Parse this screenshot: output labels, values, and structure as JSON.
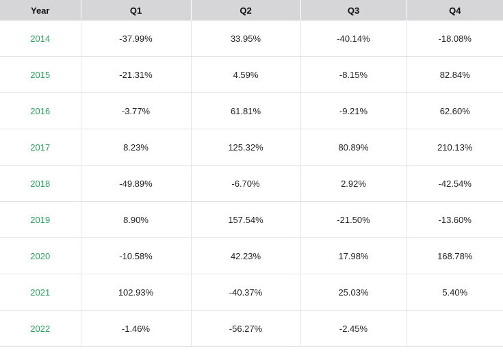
{
  "table": {
    "headers": [
      "Year",
      "Q1",
      "Q2",
      "Q3",
      "Q4"
    ],
    "rows": [
      {
        "year": "2014",
        "q1": "-37.99%",
        "q2": "33.95%",
        "q3": "-40.14%",
        "q4": "-18.08%"
      },
      {
        "year": "2015",
        "q1": "-21.31%",
        "q2": "4.59%",
        "q3": "-8.15%",
        "q4": "82.84%"
      },
      {
        "year": "2016",
        "q1": "-3.77%",
        "q2": "61.81%",
        "q3": "-9.21%",
        "q4": "62.60%"
      },
      {
        "year": "2017",
        "q1": "8.23%",
        "q2": "125.32%",
        "q3": "80.89%",
        "q4": "210.13%"
      },
      {
        "year": "2018",
        "q1": "-49.89%",
        "q2": "-6.70%",
        "q3": "2.92%",
        "q4": "-42.54%"
      },
      {
        "year": "2019",
        "q1": "8.90%",
        "q2": "157.54%",
        "q3": "-21.50%",
        "q4": "-13.60%"
      },
      {
        "year": "2020",
        "q1": "-10.58%",
        "q2": "42.23%",
        "q3": "17.98%",
        "q4": "168.78%"
      },
      {
        "year": "2021",
        "q1": "102.93%",
        "q2": "-40.37%",
        "q3": "25.03%",
        "q4": "5.40%"
      },
      {
        "year": "2022",
        "q1": "-1.46%",
        "q2": "-56.27%",
        "q3": "-2.45%",
        "q4": ""
      }
    ]
  },
  "colors": {
    "header_background": "#d6d6d9",
    "year_link": "#2e9e5b",
    "grid_line": "#e4e4e4"
  }
}
